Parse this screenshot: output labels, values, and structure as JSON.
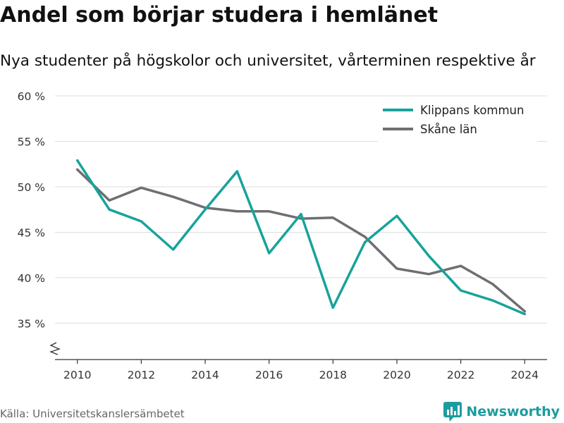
{
  "header": {
    "title": "Andel som börjar studera i hemlänet",
    "subtitle": "Nya studenter på högskolor och universitet, vårterminen respektive år"
  },
  "footer": {
    "source": "Källa: Universitetskanslersämbetet",
    "brand": "Newsworthy",
    "brand_icon": "bar-chart-logo-icon"
  },
  "colors": {
    "klippan": "#17a39b",
    "skane": "#6e6e73",
    "grid": "#dddddd",
    "brand": "#1b9ca0"
  },
  "chart_data": {
    "type": "line",
    "title": "Andel som börjar studera i hemlänet",
    "subtitle": "Nya studenter på högskolor och universitet, vårterminen respektive år",
    "x": [
      2010,
      2011,
      2012,
      2013,
      2014,
      2015,
      2016,
      2017,
      2018,
      2019,
      2020,
      2021,
      2022,
      2023,
      2024
    ],
    "series": [
      {
        "name": "Klippans kommun",
        "color": "#17a39b",
        "values": [
          52.9,
          47.5,
          46.2,
          43.1,
          47.5,
          51.7,
          42.7,
          47.0,
          36.7,
          43.9,
          46.8,
          42.4,
          38.6,
          37.5,
          36.0
        ]
      },
      {
        "name": "Skåne län",
        "color": "#6e6e73",
        "values": [
          51.9,
          48.5,
          49.9,
          48.9,
          47.7,
          47.3,
          47.3,
          46.5,
          46.6,
          44.5,
          41.0,
          40.4,
          41.3,
          39.3,
          36.3
        ]
      }
    ],
    "y_ticks": [
      35,
      40,
      45,
      50,
      55,
      60
    ],
    "y_tick_labels": [
      "35 %",
      "40 %",
      "45 %",
      "50 %",
      "55 %",
      "60 %"
    ],
    "x_ticks": [
      2010,
      2012,
      2014,
      2016,
      2018,
      2020,
      2022,
      2024
    ],
    "x_tick_labels": [
      "2010",
      "2012",
      "2014",
      "2016",
      "2018",
      "2020",
      "2022",
      "2024"
    ],
    "ylim": [
      31,
      60
    ],
    "xlim": [
      2009.3,
      2024.7
    ],
    "axis_break": true,
    "grid": true,
    "legend_position": "top-right"
  }
}
